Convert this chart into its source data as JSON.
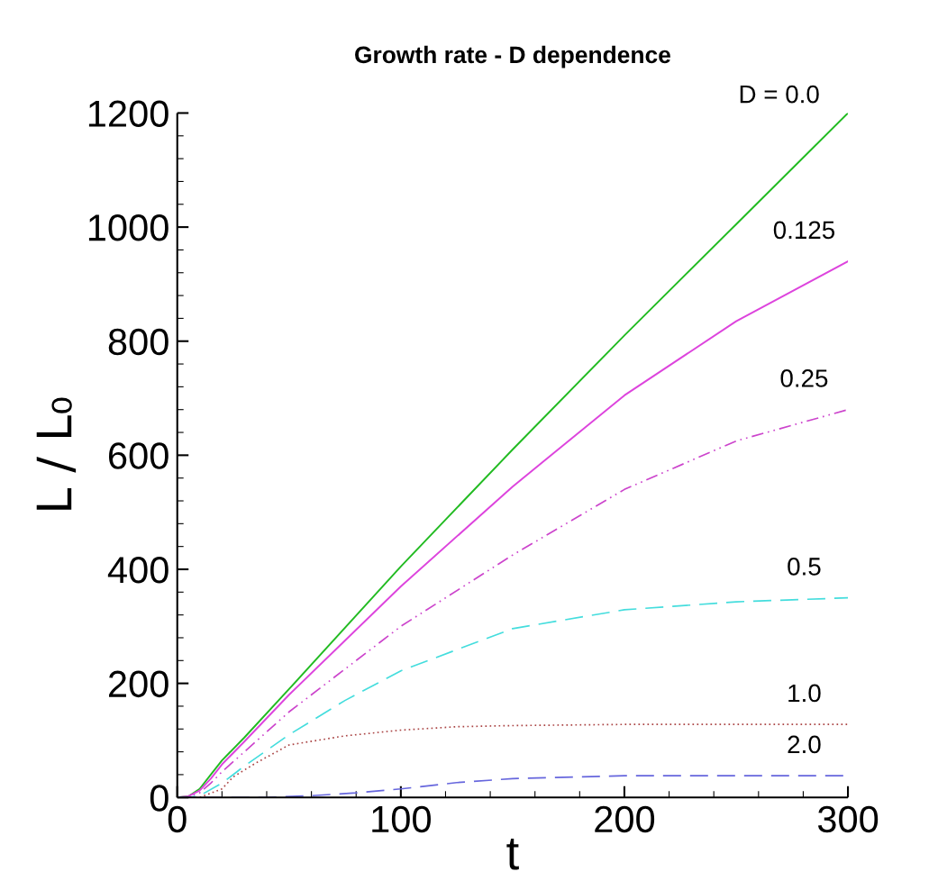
{
  "chart_data": {
    "type": "line",
    "title": "Growth rate - D dependence",
    "xlabel": "t",
    "ylabel": "L / L₀",
    "xlim": [
      0,
      300
    ],
    "xticks": [
      0,
      100,
      200,
      300
    ],
    "ylim": [
      0,
      1200
    ],
    "yticks": [
      0,
      200,
      400,
      600,
      800,
      1000,
      1200
    ],
    "grid": false,
    "marker": "none",
    "series": [
      {
        "color": "#22bb22",
        "line_style": "solid",
        "x": [
          0,
          5,
          10,
          15,
          20,
          30,
          50,
          100,
          150,
          200,
          250,
          300
        ],
        "values": [
          0,
          2,
          15,
          40,
          65,
          105,
          190,
          405,
          610,
          810,
          1005,
          1200
        ]
      },
      {
        "color": "#dd44dd",
        "line_style": "solid",
        "x": [
          0,
          5,
          10,
          15,
          20,
          30,
          50,
          100,
          150,
          200,
          250,
          300
        ],
        "values": [
          0,
          2,
          12,
          33,
          58,
          98,
          180,
          370,
          545,
          705,
          835,
          940
        ]
      },
      {
        "color": "#cc44cc",
        "line_style": "dashdotdot",
        "x": [
          0,
          5,
          10,
          15,
          20,
          30,
          50,
          100,
          150,
          200,
          250,
          300
        ],
        "values": [
          0,
          1,
          8,
          25,
          45,
          80,
          150,
          300,
          425,
          540,
          625,
          680
        ]
      },
      {
        "color": "#44dddd",
        "line_style": "dashed",
        "x": [
          0,
          5,
          10,
          20,
          30,
          50,
          75,
          100,
          150,
          200,
          250,
          300
        ],
        "values": [
          0,
          0,
          3,
          25,
          55,
          110,
          170,
          222,
          296,
          329,
          343,
          350
        ]
      },
      {
        "color": "#aa4444",
        "line_style": "dotted",
        "x": [
          0,
          10,
          20,
          25,
          35,
          50,
          75,
          100,
          125,
          150,
          200,
          250,
          300
        ],
        "values": [
          0,
          0,
          15,
          36,
          60,
          92,
          108,
          118,
          124,
          126,
          128,
          128,
          128
        ]
      },
      {
        "color": "#6666dd",
        "line_style": "dashed",
        "x": [
          0,
          40,
          60,
          80,
          100,
          125,
          150,
          200,
          250,
          300
        ],
        "values": [
          0,
          0,
          3,
          8,
          15,
          26,
          33,
          38,
          38,
          38
        ]
      }
    ],
    "annotations": [
      "D = 0.0",
      "0.125",
      "0.25",
      "0.5",
      "1.0",
      "2.0"
    ]
  }
}
